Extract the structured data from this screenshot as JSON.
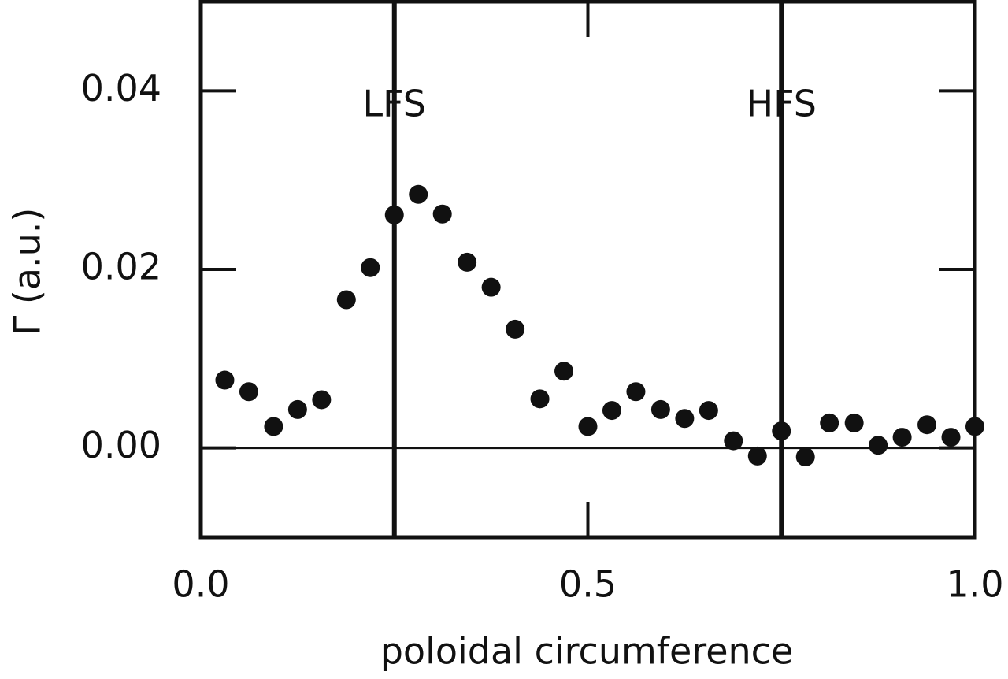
{
  "chart_data": {
    "type": "scatter",
    "x_label": "poloidal circumference",
    "y_label": "Γ (a.u.)",
    "x": [
      0.031,
      0.062,
      0.094,
      0.125,
      0.156,
      0.188,
      0.219,
      0.25,
      0.281,
      0.312,
      0.344,
      0.375,
      0.406,
      0.438,
      0.469,
      0.5,
      0.531,
      0.562,
      0.594,
      0.625,
      0.656,
      0.688,
      0.719,
      0.75,
      0.781,
      0.812,
      0.844,
      0.875,
      0.906,
      0.938,
      0.969,
      1.0
    ],
    "values": [
      0.0076,
      0.0063,
      0.0024,
      0.0043,
      0.0054,
      0.0166,
      0.0202,
      0.0261,
      0.0284,
      0.0262,
      0.0208,
      0.018,
      0.0133,
      0.0055,
      0.0086,
      0.0024,
      0.0042,
      0.0063,
      0.0043,
      0.0033,
      0.0042,
      0.0008,
      -0.0009,
      0.0019,
      -0.001,
      0.0028,
      0.0028,
      0.0003,
      0.0012,
      0.0026,
      0.0012,
      0.0024
    ],
    "color": "#111111",
    "xlim": [
      0,
      1
    ],
    "ylim": [
      -0.01,
      0.05
    ],
    "xticks": [
      {
        "value": 0,
        "label": "0.0"
      },
      0.5,
      {
        "value": 1,
        "label": "1.0"
      }
    ],
    "yticks": [
      {
        "value": 0,
        "label": "0.00"
      },
      0.02,
      0.04
    ],
    "zero_line": 0,
    "vlines": [
      {
        "x": 0.25,
        "label": "LFS"
      },
      {
        "x": 0.75,
        "label": "HFS"
      }
    ]
  }
}
